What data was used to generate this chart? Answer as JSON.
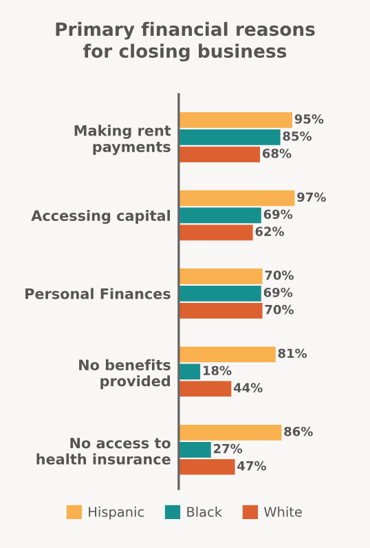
{
  "chart_data": {
    "type": "bar",
    "orientation": "horizontal",
    "title": "Primary financial reasons\nfor closing business",
    "categories": [
      "Making rent\npayments",
      "Accessing capital",
      "Personal Finances",
      "No benefits\nprovided",
      "No access to\nhealth insurance"
    ],
    "series": [
      {
        "name": "Hispanic",
        "color": "#f9b04e",
        "values": [
          95,
          97,
          70,
          81,
          86
        ],
        "value_labels": [
          "95%",
          "97%",
          "70%",
          "81%",
          "86%"
        ]
      },
      {
        "name": "Black",
        "color": "#16908f",
        "values": [
          85,
          69,
          69,
          18,
          27
        ],
        "value_labels": [
          "85%",
          "69%",
          "69%",
          "18%",
          "27%"
        ]
      },
      {
        "name": "White",
        "color": "#dc6030",
        "values": [
          68,
          62,
          70,
          44,
          47
        ],
        "value_labels": [
          "68%",
          "62%",
          "70%",
          "44%",
          "47%"
        ]
      }
    ],
    "grid": false,
    "legend": "bottom"
  }
}
